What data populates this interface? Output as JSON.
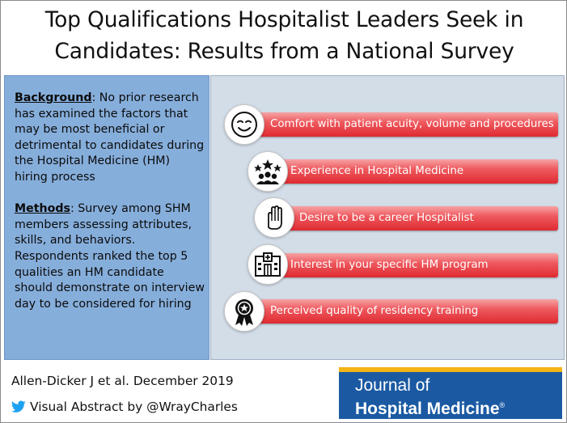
{
  "title": {
    "line1": "Top Qualifications Hospitalist Leaders Seek in",
    "line2": "Candidates: Results from a National Survey"
  },
  "background": {
    "heading": "Background",
    "text": ": No prior research has examined the factors that may be most beneficial or detrimental to candidates during the Hospital Medicine (HM) hiring process"
  },
  "methods": {
    "heading": "Methods",
    "text": ": Survey among SHM members assessing attributes, skills, and behaviors. Respondents ranked the top 5 qualities an HM candidate should demonstrate on interview day to be considered for hiring"
  },
  "qualifications": [
    {
      "label": "Comfort with patient acuity, volume and procedures",
      "icon": "smiley-face-icon"
    },
    {
      "label": "Experience in Hospital Medicine",
      "icon": "team-stars-icon"
    },
    {
      "label": "Desire to be a career Hospitalist",
      "icon": "raised-hand-icon"
    },
    {
      "label": "Interest in your specific HM program",
      "icon": "hospital-building-icon"
    },
    {
      "label": "Perceived quality of residency training",
      "icon": "award-ribbon-icon"
    }
  ],
  "footer": {
    "citation": "Allen-Dicker J et al. December 2019",
    "visual_abstract": "Visual Abstract by @WrayCharles",
    "twitter_icon": "twitter-bird-icon"
  },
  "journal": {
    "line1": "Journal of",
    "line2": "Hospital Medicine",
    "mark": "®"
  },
  "colors": {
    "left_panel": "#86aedb",
    "right_panel": "#d3dde8",
    "bar_red": "#e63a40",
    "journal_blue": "#1b5aa3",
    "journal_gold": "#f2b416",
    "twitter_blue": "#1da1f2"
  }
}
